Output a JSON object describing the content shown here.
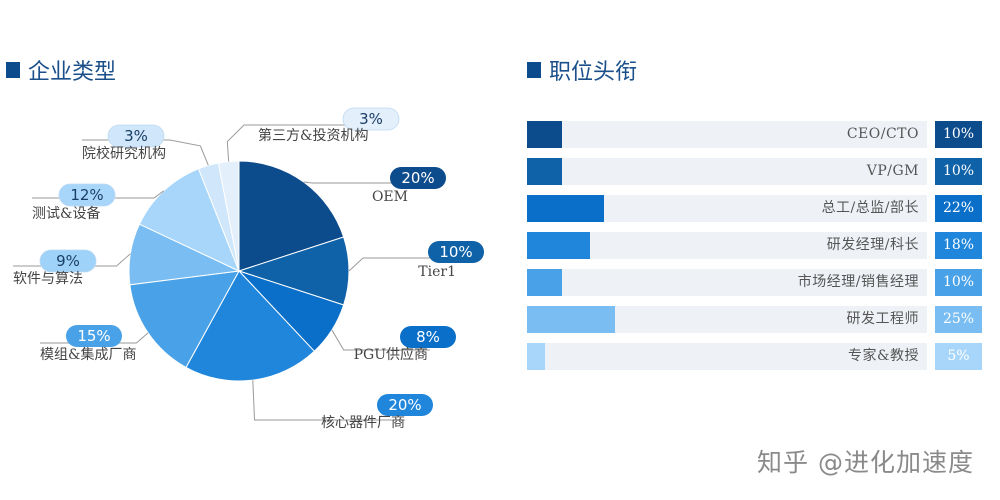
{
  "pie_section": {
    "title": "企业类型"
  },
  "bar_section": {
    "title": "职位头衔"
  },
  "watermark": "知乎 @进化加速度",
  "chart_data": [
    {
      "type": "pie",
      "title": "企业类型",
      "slices": [
        {
          "label": "OEM",
          "pct_label": "20%",
          "value": 20,
          "color": "#0d4c8c",
          "badge_color": "#0d4c8c"
        },
        {
          "label": "Tier1",
          "pct_label": "10%",
          "value": 10,
          "color": "#0f62a8",
          "badge_color": "#0f62a8"
        },
        {
          "label": "PGU供应商",
          "pct_label": "8%",
          "value": 8,
          "color": "#0a6fc9",
          "badge_color": "#0a6fc9"
        },
        {
          "label": "核心器件厂商",
          "pct_label": "20%",
          "value": 20,
          "color": "#1f86dc",
          "badge_color": "#1f86dc"
        },
        {
          "label": "模组&集成厂商",
          "pct_label": "15%",
          "value": 15,
          "color": "#49a2e8",
          "badge_color": "#49a2e8"
        },
        {
          "label": "软件与算法",
          "pct_label": "9%",
          "value": 9,
          "color": "#79bdf2",
          "badge_color": "#9ed2f8"
        },
        {
          "label": "测试&设备",
          "pct_label": "12%",
          "value": 12,
          "color": "#a8d6fa",
          "badge_color": "#a8d6fa"
        },
        {
          "label": "院校研究机构",
          "pct_label": "3%",
          "value": 3,
          "color": "#cfe6fb",
          "badge_color": "#cfe6fb"
        },
        {
          "label": "第三方&投资机构",
          "pct_label": "3%",
          "value": 3,
          "color": "#e3effb",
          "badge_color": "#e3effb"
        }
      ]
    },
    {
      "type": "bar",
      "title": "职位头衔",
      "orientation": "horizontal",
      "xlim": [
        0,
        100
      ],
      "categories": [
        "CEO/CTO",
        "VP/GM",
        "总工/总监/部长",
        "研发经理/科长",
        "市场经理/销售经理",
        "研发工程师",
        "专家&教授"
      ],
      "values": [
        10,
        10,
        22,
        18,
        10,
        25,
        5
      ],
      "value_labels": [
        "10%",
        "10%",
        "22%",
        "18%",
        "10%",
        "25%",
        "5%"
      ],
      "colors": [
        "#0d4c8c",
        "#0f62a8",
        "#0a6fc9",
        "#1f86dc",
        "#49a2e8",
        "#79bdf2",
        "#a8d6fa"
      ]
    }
  ]
}
